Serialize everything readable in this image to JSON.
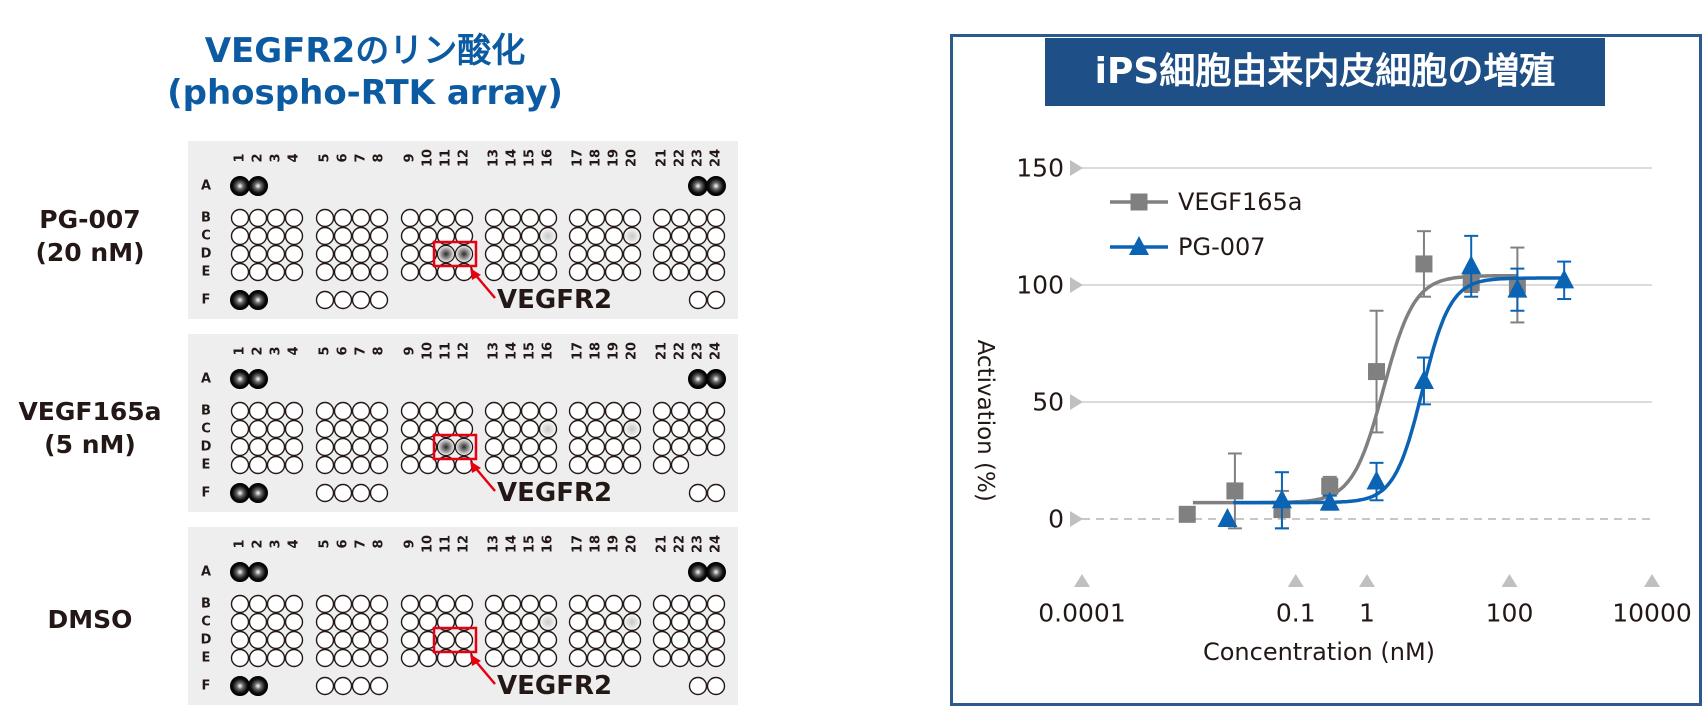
{
  "left_figure": {
    "title_line1": "VEGFR2のリン酸化",
    "title_line2": "(phospho-RTK array)",
    "column_numbers": [
      "1",
      "2",
      "3",
      "4",
      "5",
      "6",
      "7",
      "8",
      "9",
      "10",
      "11",
      "12",
      "13",
      "14",
      "15",
      "16",
      "17",
      "18",
      "19",
      "20",
      "21",
      "22",
      "23",
      "24"
    ],
    "row_letters": [
      "A",
      "B",
      "C",
      "D",
      "E",
      "F"
    ],
    "target_label": "VEGFR2",
    "panels": [
      {
        "label_line1": "PG-007",
        "label_line2": "(20 nM)",
        "vegfr2_spot": "strong"
      },
      {
        "label_line1": "VEGF165a",
        "label_line2": "(5 nM)",
        "vegfr2_spot": "strong"
      },
      {
        "label_line1": "DMSO",
        "label_line2": "",
        "vegfr2_spot": "none"
      }
    ],
    "highlight_color": "#e60012"
  },
  "right_figure": {
    "title": "iPS細胞由来内皮細胞の増殖",
    "border_color": "#2d5a8c",
    "title_bg_color": "#1e4f86"
  },
  "chart_data": {
    "type": "line",
    "title": "iPS細胞由来内皮細胞の増殖",
    "xlabel": "Concentration (nM)",
    "ylabel": "Activation (%)",
    "xscale": "log",
    "xlim": [
      0.0001,
      10000
    ],
    "ylim": [
      -25,
      150
    ],
    "xticks": [
      0.0001,
      0.1,
      1,
      100,
      10000
    ],
    "xticklabels": [
      "0.0001",
      "0.1",
      "1",
      "100",
      "10000"
    ],
    "yticks": [
      0,
      50,
      100,
      150
    ],
    "yticklabels": [
      "0",
      "50",
      "100",
      "150"
    ],
    "grid": true,
    "legend_position": "top-left",
    "series": [
      {
        "name": "VEGF165a",
        "marker": "square",
        "color": "#808080",
        "points": [
          {
            "x": 0.003,
            "y": 2,
            "err": 0
          },
          {
            "x": 0.014,
            "y": 12,
            "err": 16
          },
          {
            "x": 0.064,
            "y": 4,
            "err": 8
          },
          {
            "x": 0.3,
            "y": 14,
            "err": 4
          },
          {
            "x": 1.36,
            "y": 63,
            "err": 26
          },
          {
            "x": 6.3,
            "y": 109,
            "err": 14
          },
          {
            "x": 29,
            "y": 101,
            "err": 4
          },
          {
            "x": 129,
            "y": 100,
            "err": 16
          }
        ],
        "fit": {
          "bottom": 7,
          "top": 104,
          "ec50": 1.7,
          "hill": 2.0
        }
      },
      {
        "name": "PG-007",
        "marker": "triangle",
        "color": "#0b63b4",
        "points": [
          {
            "x": 0.011,
            "y": 0,
            "err": 0
          },
          {
            "x": 0.064,
            "y": 8,
            "err": 12
          },
          {
            "x": 0.3,
            "y": 7,
            "err": 3
          },
          {
            "x": 1.36,
            "y": 16,
            "err": 8
          },
          {
            "x": 6.3,
            "y": 59,
            "err": 10
          },
          {
            "x": 29,
            "y": 108,
            "err": 13
          },
          {
            "x": 129,
            "y": 98,
            "err": 9
          },
          {
            "x": 585,
            "y": 102,
            "err": 8
          }
        ],
        "fit": {
          "bottom": 7,
          "top": 103,
          "ec50": 6.0,
          "hill": 2.2
        }
      }
    ]
  }
}
